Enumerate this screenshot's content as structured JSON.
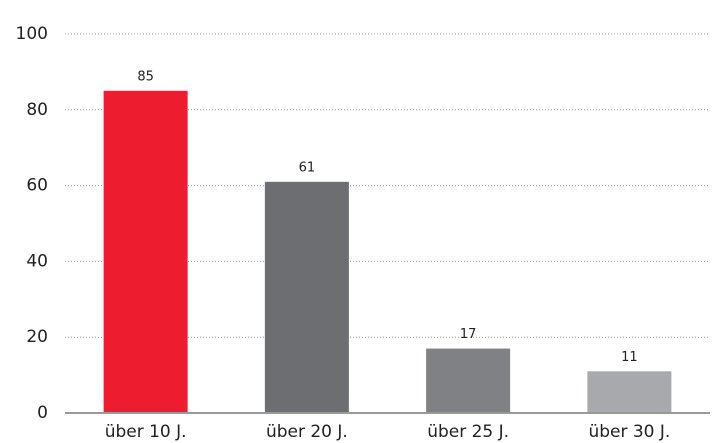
{
  "chart_data": {
    "type": "bar",
    "categories": [
      "über 10 J.",
      "über 20 J.",
      "über 25 J.",
      "über 30 J."
    ],
    "values": [
      85,
      61,
      17,
      11
    ],
    "colors": [
      "#ed1c2e",
      "#6d6e71",
      "#808184",
      "#a7a9ac"
    ],
    "ylim": [
      0,
      100
    ],
    "yticks": [
      0,
      20,
      40,
      60,
      80,
      100
    ],
    "grid": true
  }
}
